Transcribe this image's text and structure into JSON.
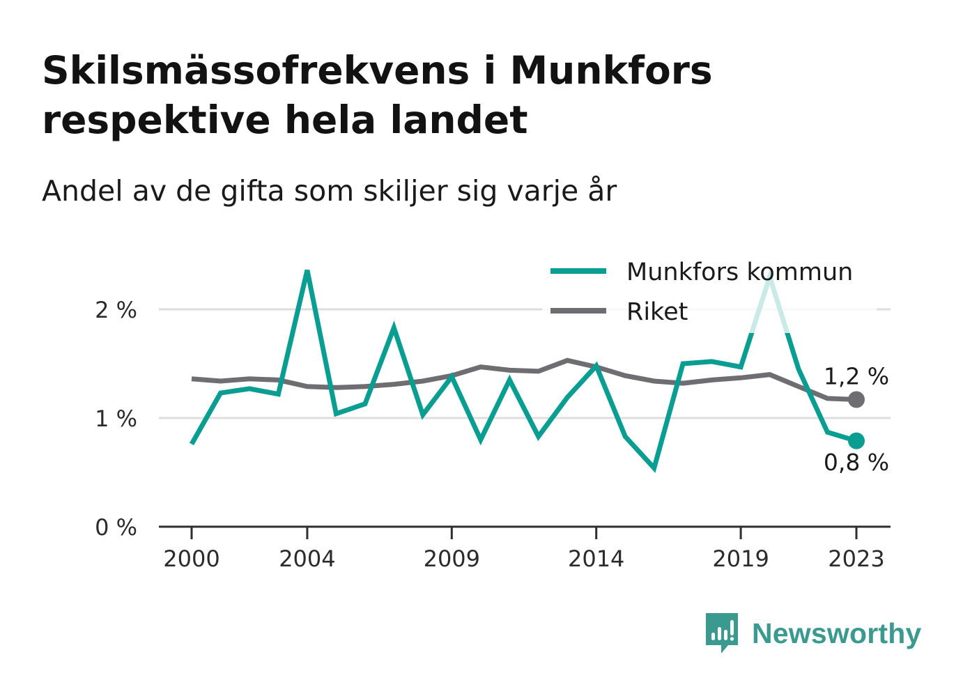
{
  "title": "Skilsmässofrekvens i Munkfors respektive hela landet",
  "subtitle": "Andel av de gifta som skiljer sig varje år",
  "brand": {
    "name": "Newsworthy",
    "icon": "newsworthy-logo-icon",
    "color": "#3b9a90"
  },
  "chart_data": {
    "type": "line",
    "x": [
      2000,
      2001,
      2002,
      2003,
      2004,
      2005,
      2006,
      2007,
      2008,
      2009,
      2010,
      2011,
      2012,
      2013,
      2014,
      2015,
      2016,
      2017,
      2018,
      2019,
      2020,
      2021,
      2022,
      2023
    ],
    "x_ticks": [
      2000,
      2004,
      2009,
      2014,
      2019,
      2023
    ],
    "x_tick_labels": [
      "2000",
      "2004",
      "2009",
      "2014",
      "2019",
      "2023"
    ],
    "y_ticks": [
      0,
      1,
      2
    ],
    "y_tick_labels": [
      "0 %",
      "1 %",
      "2 %"
    ],
    "ylim": [
      0,
      2.4
    ],
    "grid": true,
    "legend_position": "top-right",
    "series": [
      {
        "name": "Munkfors kommun",
        "color": "#0a9e92",
        "values": [
          0.76,
          1.23,
          1.27,
          1.22,
          2.36,
          1.04,
          1.13,
          1.83,
          1.03,
          1.38,
          0.8,
          1.35,
          0.83,
          1.19,
          1.48,
          0.83,
          0.54,
          1.5,
          1.52,
          1.47,
          2.3,
          1.45,
          0.87,
          0.79
        ],
        "end_label": "0,8 %"
      },
      {
        "name": "Riket",
        "color": "#6d6d72",
        "values": [
          1.36,
          1.34,
          1.36,
          1.35,
          1.29,
          1.28,
          1.29,
          1.31,
          1.34,
          1.39,
          1.47,
          1.44,
          1.43,
          1.53,
          1.47,
          1.39,
          1.34,
          1.32,
          1.35,
          1.37,
          1.4,
          1.29,
          1.18,
          1.17
        ],
        "end_label": "1,2 %"
      }
    ]
  }
}
